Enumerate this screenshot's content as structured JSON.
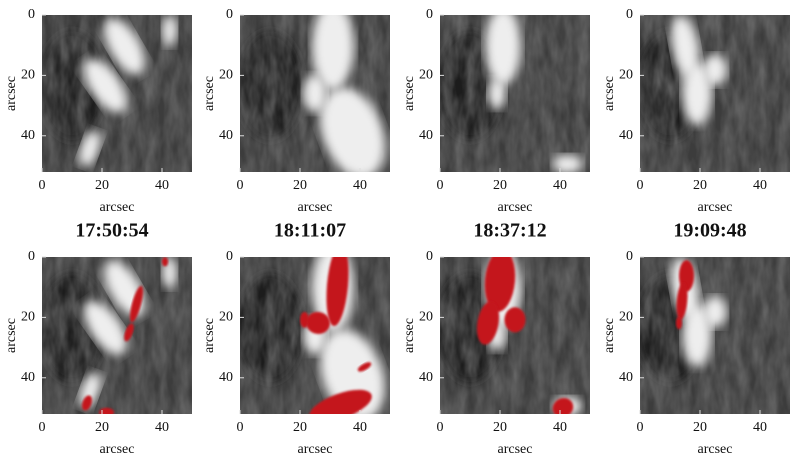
{
  "x_label": "arcsec",
  "y_label": "arcsec",
  "xlim": [
    0,
    50
  ],
  "ylim": [
    0,
    52
  ],
  "xticks": [
    0,
    20,
    40
  ],
  "yticks": [
    0,
    20,
    40
  ],
  "times": [
    "17:50:54",
    "18:11:07",
    "18:37:12",
    "19:09:48"
  ]
}
